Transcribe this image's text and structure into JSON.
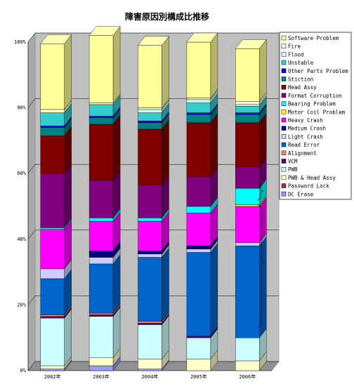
{
  "chart_data": {
    "type": "bar",
    "stacked": true,
    "three_d": true,
    "title": "障害原因別構成比推移",
    "xlabel": "",
    "ylabel": "",
    "ylim": [
      0,
      100
    ],
    "yticks": [
      "0%",
      "20%",
      "40%",
      "60%",
      "80%",
      "100%"
    ],
    "categories": [
      "2002年",
      "2003年",
      "2004年",
      "2005年",
      "2006年"
    ],
    "grid": true,
    "legend_position": "right",
    "series": [
      {
        "name": "DC Erase",
        "color": "#9999FF",
        "values": [
          0.5,
          1.5,
          0.5,
          0.0,
          0.0
        ]
      },
      {
        "name": "Password Lock",
        "color": "#993366",
        "values": [
          0.0,
          0.0,
          0.0,
          0.0,
          0.0
        ]
      },
      {
        "name": "PWB & Head Assy",
        "color": "#FFFFCC",
        "values": [
          1.0,
          2.5,
          3.0,
          3.5,
          3.0
        ]
      },
      {
        "name": "PWB",
        "color": "#CCFFFF",
        "values": [
          14.5,
          12.5,
          10.5,
          6.5,
          7.0
        ]
      },
      {
        "name": "VCM",
        "color": "#660066",
        "values": [
          0.5,
          0.5,
          0.5,
          0.5,
          0.0
        ]
      },
      {
        "name": "Alignment",
        "color": "#FF8080",
        "values": [
          0.5,
          0.5,
          0.5,
          0.0,
          0.0
        ]
      },
      {
        "name": "Read Error",
        "color": "#0066CC",
        "values": [
          11.0,
          15.0,
          19.5,
          25.5,
          28.0
        ]
      },
      {
        "name": "Light Crash",
        "color": "#CCCCFF",
        "values": [
          3.0,
          2.0,
          1.0,
          1.0,
          1.0
        ]
      },
      {
        "name": "Medium Crash",
        "color": "#000080",
        "values": [
          0.0,
          2.0,
          1.0,
          1.0,
          0.0
        ]
      },
      {
        "name": "Heavy Crash",
        "color": "#FF00FF",
        "values": [
          12.0,
          9.0,
          9.0,
          10.0,
          11.0
        ]
      },
      {
        "name": "Motor Coil Problem",
        "color": "#FFFF00",
        "values": [
          0.0,
          0.0,
          0.0,
          0.0,
          0.5
        ]
      },
      {
        "name": "Bearing Problem",
        "color": "#00FFFF",
        "values": [
          0.5,
          1.0,
          1.0,
          2.0,
          5.0
        ]
      },
      {
        "name": "Format Corruption",
        "color": "#800080",
        "values": [
          16.5,
          11.5,
          10.0,
          9.0,
          6.5
        ]
      },
      {
        "name": "Head Assy",
        "color": "#800000",
        "values": [
          11.5,
          17.0,
          17.0,
          16.5,
          13.5
        ]
      },
      {
        "name": "Stiction",
        "color": "#008080",
        "values": [
          2.5,
          2.0,
          2.0,
          2.5,
          2.5
        ]
      },
      {
        "name": "Other Parts Problem",
        "color": "#0000FF",
        "values": [
          0.5,
          0.5,
          0.5,
          0.5,
          0.5
        ]
      },
      {
        "name": "Unstable",
        "color": "#33CCCC",
        "values": [
          4.0,
          3.5,
          2.5,
          3.0,
          2.0
        ]
      },
      {
        "name": "Flood",
        "color": "#CCFFFF",
        "values": [
          0.0,
          0.0,
          1.0,
          1.0,
          0.5
        ]
      },
      {
        "name": "Fire",
        "color": "#FFFFCC",
        "values": [
          1.0,
          0.5,
          0.5,
          0.5,
          1.0
        ]
      },
      {
        "name": "Software Problem",
        "color": "#FFFF99",
        "values": [
          20.0,
          20.5,
          19.0,
          17.0,
          16.0
        ]
      }
    ]
  }
}
